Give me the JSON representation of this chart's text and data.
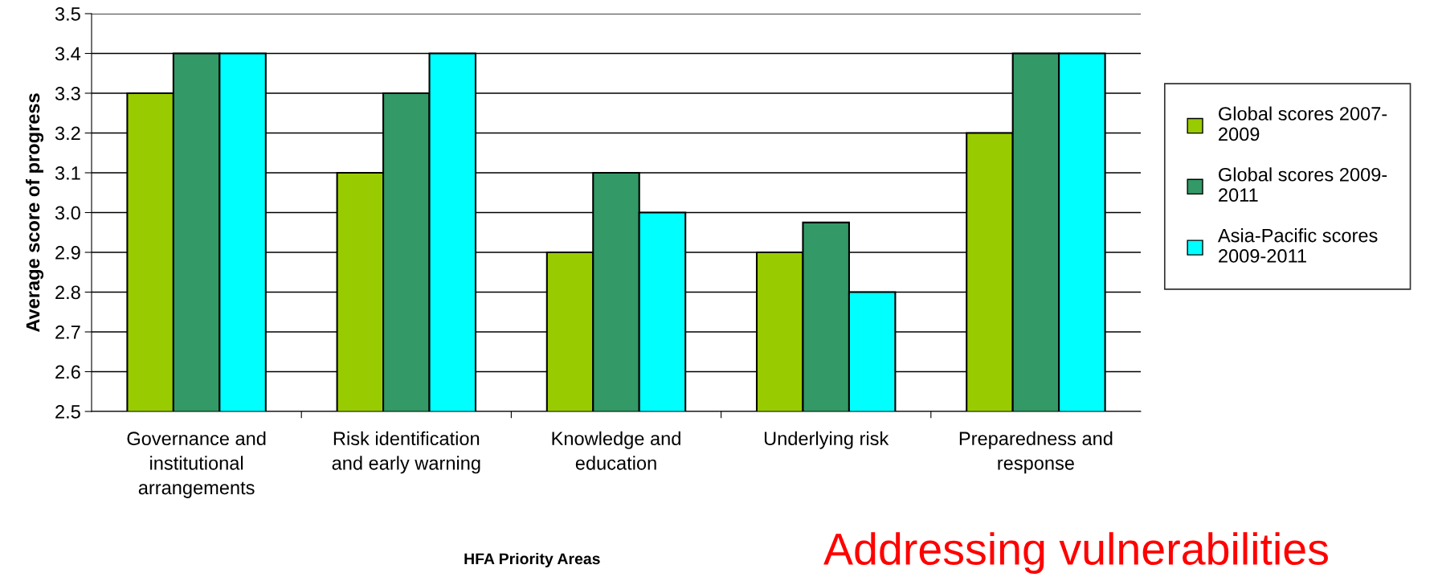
{
  "chart_data": {
    "type": "bar",
    "xlabel": "HFA Priority Areas",
    "ylabel": "Average score of progress",
    "categories": [
      "Governance and\ninstitutional\narrangements",
      "Risk identification\nand early warning",
      "Knowledge and\neducation",
      "Underlying risk",
      "Preparedness and\nresponse"
    ],
    "series": [
      {
        "name": "Global scores 2007-\n2009",
        "color": "#99cc00",
        "values": [
          3.3,
          3.1,
          2.9,
          2.9,
          3.2
        ]
      },
      {
        "name": "Global scores 2009-\n2011",
        "color": "#339966",
        "values": [
          3.4,
          3.3,
          3.1,
          2.975,
          3.4
        ]
      },
      {
        "name": "Asia-Pacific scores\n2009-2011",
        "color": "#00ffff",
        "values": [
          3.4,
          3.4,
          3.0,
          2.8,
          3.4
        ]
      }
    ],
    "ylim": [
      2.5,
      3.5
    ],
    "yticks": [
      {
        "value": 2.5,
        "label": "2.5"
      },
      {
        "value": 2.6,
        "label": "2.6"
      },
      {
        "value": 2.7,
        "label": "2.7"
      },
      {
        "value": 2.8,
        "label": "2.8"
      },
      {
        "value": 2.9,
        "label": "2.9"
      },
      {
        "value": 3.0,
        "label": "3.0"
      },
      {
        "value": 3.1,
        "label": "3.1"
      },
      {
        "value": 3.2,
        "label": "3.2"
      },
      {
        "value": 3.3,
        "label": "3.3"
      },
      {
        "value": 3.4,
        "label": "3.4"
      },
      {
        "value": 3.5,
        "label": "3.5"
      }
    ],
    "grid": "y",
    "legend": "right",
    "annotations": [
      "Addressing vulnerabilities"
    ]
  }
}
